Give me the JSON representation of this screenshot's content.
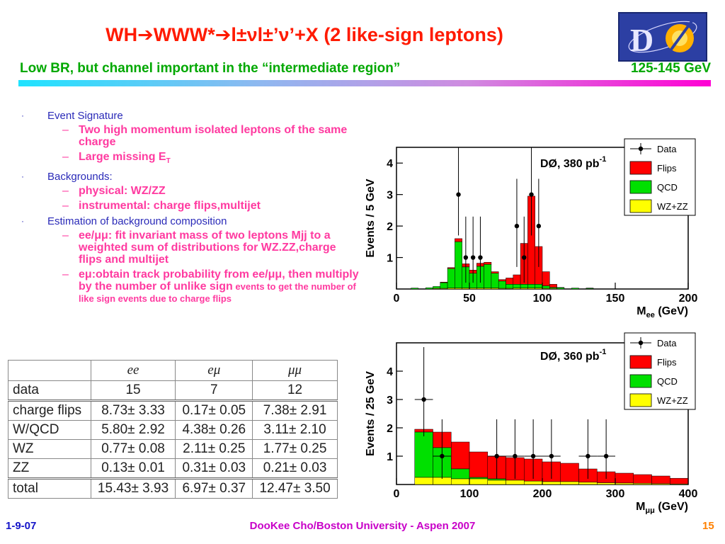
{
  "slide": {
    "title_pre": "WH",
    "title_www": "WWW*",
    "title_rest": "l±νl±’ν’+X",
    "title_paren": "(2 like-sign leptons)",
    "subtitle_left": "Low BR, but  channel important in the “intermediate region”",
    "subtitle_right": "125-145 GeV",
    "footer_date": "1-9-07",
    "footer_center": "DooKee Cho/Boston University - Aspen 2007",
    "page_number": "15",
    "logo_text": "DØ"
  },
  "bullets": [
    {
      "text": "Event Signature",
      "subs": [
        "Two high momentum isolated leptons of the same charge",
        "Large missing E"
      ],
      "sub_t": "T"
    },
    {
      "text": "Backgrounds:",
      "subs": [
        "physical: WZ/ZZ",
        "instrumental: charge flips,multijet"
      ]
    },
    {
      "text": "Estimation of background composition",
      "sub1": "ee/μμ: fit invariant mass of two leptons Mjj to a weighted sum of distributions for WZ.ZZ,charge flips and multijet",
      "sub2_bold": "eμ:obtain track probability from ee/μμ, then multiply by the number of unlike sign",
      "sub2_small": " events to get the number of like sign events due to charge flips"
    }
  ],
  "table": {
    "columns": [
      "",
      "ee",
      "eμ",
      "μμ"
    ],
    "data_row": [
      "data",
      "15",
      "7",
      "12"
    ],
    "rows": [
      [
        "charge flips",
        "8.73± 3.33",
        "0.17± 0.05",
        "7.38± 2.91"
      ],
      [
        "W/QCD",
        "5.80± 2.92",
        "4.38± 0.26",
        "3.11± 2.10"
      ],
      [
        "WZ",
        "0.77± 0.08",
        "2.11± 0.25",
        "1.77± 0.25"
      ],
      [
        "ZZ",
        "0.13± 0.01",
        "0.31± 0.03",
        "0.21± 0.03"
      ]
    ],
    "total_row": [
      "total",
      "15.43± 3.93",
      "6.97± 0.37",
      "12.47± 3.50"
    ]
  },
  "colors": {
    "flips": "#ff0000",
    "qcd": "#00e000",
    "wzzz": "#ffff00"
  },
  "chart_data": [
    {
      "type": "bar",
      "ylabel": "Events / 5 GeV",
      "xlabel": "M",
      "xlabel_sub": "ee",
      "xlabel_unit": " (GeV)",
      "annotation": "DØ, 380 pb",
      "annotation_sup": "-1",
      "xlim": [
        0,
        200
      ],
      "ylim": [
        0,
        4.5
      ],
      "xticks": [
        0,
        50,
        100,
        150,
        200
      ],
      "yticks": [
        1,
        2,
        3,
        4
      ],
      "bin_width": 5,
      "legend": [
        "Data",
        "Flips",
        "QCD",
        "WZ+ZZ"
      ],
      "legend_placement": "top-right",
      "stack": [
        {
          "x0": 10,
          "x1": 15,
          "wz": 0,
          "qcd": 0.03,
          "flips": 0.03
        },
        {
          "x0": 20,
          "x1": 25,
          "wz": 0,
          "qcd": 0.04,
          "flips": 0.04
        },
        {
          "x0": 25,
          "x1": 30,
          "wz": 0.02,
          "qcd": 0.08,
          "flips": 0.08
        },
        {
          "x0": 30,
          "x1": 35,
          "wz": 0.02,
          "qcd": 0.2,
          "flips": 0.22
        },
        {
          "x0": 35,
          "x1": 40,
          "wz": 0.03,
          "qcd": 0.65,
          "flips": 0.68
        },
        {
          "x0": 40,
          "x1": 45,
          "wz": 0.03,
          "qcd": 1.5,
          "flips": 1.6
        },
        {
          "x0": 45,
          "x1": 50,
          "wz": 0.03,
          "qcd": 0.7,
          "flips": 0.8
        },
        {
          "x0": 50,
          "x1": 55,
          "wz": 0.03,
          "qcd": 0.5,
          "flips": 0.6
        },
        {
          "x0": 55,
          "x1": 60,
          "wz": 0.03,
          "qcd": 0.72,
          "flips": 0.82
        },
        {
          "x0": 60,
          "x1": 65,
          "wz": 0.03,
          "qcd": 0.78,
          "flips": 0.85
        },
        {
          "x0": 65,
          "x1": 70,
          "wz": 0.03,
          "qcd": 0.5,
          "flips": 0.55
        },
        {
          "x0": 70,
          "x1": 75,
          "wz": 0.02,
          "qcd": 0.25,
          "flips": 0.3
        },
        {
          "x0": 75,
          "x1": 80,
          "wz": 0.02,
          "qcd": 0.15,
          "flips": 0.35
        },
        {
          "x0": 80,
          "x1": 85,
          "wz": 0.03,
          "qcd": 0.15,
          "flips": 0.45
        },
        {
          "x0": 85,
          "x1": 90,
          "wz": 0.03,
          "qcd": 0.15,
          "flips": 1.45
        },
        {
          "x0": 90,
          "x1": 95,
          "wz": 0.03,
          "qcd": 0.15,
          "flips": 2.95
        },
        {
          "x0": 95,
          "x1": 100,
          "wz": 0.03,
          "qcd": 0.15,
          "flips": 1.35
        },
        {
          "x0": 100,
          "x1": 105,
          "wz": 0.02,
          "qcd": 0.1,
          "flips": 0.55
        },
        {
          "x0": 105,
          "x1": 110,
          "wz": 0.02,
          "qcd": 0.05,
          "flips": 0.15
        },
        {
          "x0": 110,
          "x1": 115,
          "wz": 0,
          "qcd": 0.04,
          "flips": 0.05
        },
        {
          "x0": 120,
          "x1": 125,
          "wz": 0,
          "qcd": 0.03,
          "flips": 0.03
        },
        {
          "x0": 130,
          "x1": 135,
          "wz": 0,
          "qcd": 0.02,
          "flips": 0.03
        }
      ],
      "points": [
        {
          "x": 42.5,
          "y": 3,
          "lo": 1.7,
          "hi": 4.6
        },
        {
          "x": 47.5,
          "y": 1,
          "lo": 0.2,
          "hi": 2.3
        },
        {
          "x": 52.5,
          "y": 1,
          "lo": 0.2,
          "hi": 2.3
        },
        {
          "x": 57.5,
          "y": 1,
          "lo": 0.2,
          "hi": 2.3
        },
        {
          "x": 82.5,
          "y": 2,
          "lo": 0.7,
          "hi": 3.5
        },
        {
          "x": 87.5,
          "y": 1,
          "lo": 0.2,
          "hi": 2.3
        },
        {
          "x": 92.5,
          "y": 3,
          "lo": 1.7,
          "hi": 4.6
        },
        {
          "x": 97.5,
          "y": 2,
          "lo": 0.7,
          "hi": 3.5
        }
      ]
    },
    {
      "type": "bar",
      "ylabel": "Events / 25 GeV",
      "xlabel": "M",
      "xlabel_sub": "μμ",
      "xlabel_unit": " (GeV)",
      "annotation": "DØ, 360 pb",
      "annotation_sup": "-1",
      "xlim": [
        0,
        400
      ],
      "ylim": [
        0,
        5
      ],
      "xticks": [
        0,
        100,
        200,
        300,
        400
      ],
      "yticks": [
        1,
        2,
        3,
        4
      ],
      "bin_width": 25,
      "legend": [
        "Data",
        "Flips",
        "QCD",
        "WZ+ZZ"
      ],
      "legend_placement": "top-right",
      "stack": [
        {
          "x0": 25,
          "x1": 50,
          "wz": 0.25,
          "qcd": 1.85,
          "flips": 1.95
        },
        {
          "x0": 50,
          "x1": 75,
          "wz": 0.25,
          "qcd": 1.3,
          "flips": 1.85
        },
        {
          "x0": 75,
          "x1": 100,
          "wz": 0.2,
          "qcd": 0.55,
          "flips": 1.5
        },
        {
          "x0": 100,
          "x1": 125,
          "wz": 0.2,
          "qcd": 0.25,
          "flips": 1.15
        },
        {
          "x0": 125,
          "x1": 150,
          "wz": 0.15,
          "qcd": 0.2,
          "flips": 1.0
        },
        {
          "x0": 150,
          "x1": 175,
          "wz": 0.15,
          "qcd": 0.15,
          "flips": 0.95
        },
        {
          "x0": 175,
          "x1": 200,
          "wz": 0.12,
          "qcd": 0.12,
          "flips": 0.9
        },
        {
          "x0": 200,
          "x1": 225,
          "wz": 0.1,
          "qcd": 0.1,
          "flips": 0.8
        },
        {
          "x0": 225,
          "x1": 250,
          "wz": 0.1,
          "qcd": 0.1,
          "flips": 0.75
        },
        {
          "x0": 250,
          "x1": 275,
          "wz": 0.08,
          "qcd": 0.08,
          "flips": 0.55
        },
        {
          "x0": 275,
          "x1": 300,
          "wz": 0.06,
          "qcd": 0.06,
          "flips": 0.45
        },
        {
          "x0": 300,
          "x1": 325,
          "wz": 0.05,
          "qcd": 0.05,
          "flips": 0.4
        },
        {
          "x0": 325,
          "x1": 350,
          "wz": 0.04,
          "qcd": 0.04,
          "flips": 0.35
        },
        {
          "x0": 350,
          "x1": 375,
          "wz": 0.03,
          "qcd": 0.03,
          "flips": 0.3
        },
        {
          "x0": 375,
          "x1": 400,
          "wz": 0.02,
          "qcd": 0.02,
          "flips": 0.22
        }
      ],
      "points": [
        {
          "x": 37.5,
          "xerr": 12.5,
          "y": 3,
          "lo": 1.7,
          "hi": 4.85
        },
        {
          "x": 62.5,
          "xerr": 12.5,
          "y": 1,
          "lo": 0.2,
          "hi": 2.3
        },
        {
          "x": 137.5,
          "xerr": 12.5,
          "y": 1,
          "lo": 0.2,
          "hi": 2.3
        },
        {
          "x": 162.5,
          "xerr": 12.5,
          "y": 1,
          "lo": 0.2,
          "hi": 2.3
        },
        {
          "x": 187.5,
          "xerr": 12.5,
          "y": 1,
          "lo": 0.2,
          "hi": 2.3
        },
        {
          "x": 212.5,
          "xerr": 12.5,
          "y": 1,
          "lo": 0.2,
          "hi": 2.3
        },
        {
          "x": 262.5,
          "xerr": 12.5,
          "y": 1,
          "lo": 0.2,
          "hi": 2.3
        },
        {
          "x": 287.5,
          "xerr": 12.5,
          "y": 1,
          "lo": 0.2,
          "hi": 2.3
        }
      ]
    }
  ]
}
